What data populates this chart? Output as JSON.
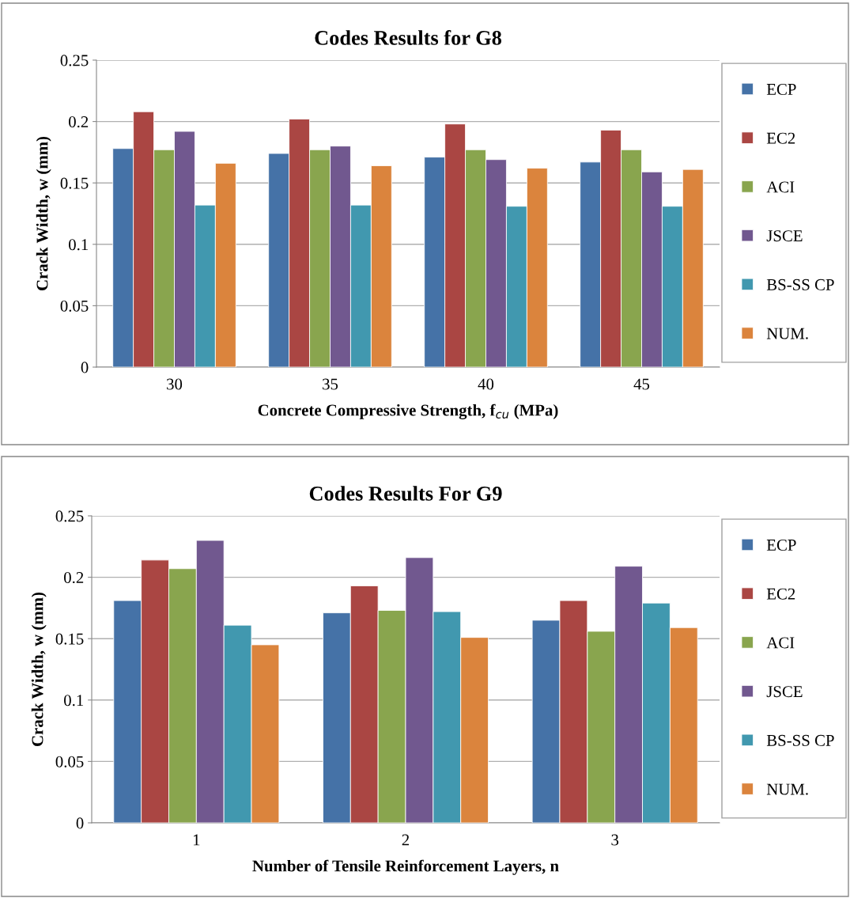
{
  "chart_data": [
    {
      "type": "bar",
      "title": "Codes Results for G8",
      "xlabel": "Concrete Compressive Strength, f$_{cu}$ (MPa)",
      "ylabel": "Crack Width, w (mm)",
      "categories": [
        "30",
        "35",
        "40",
        "45"
      ],
      "series": [
        {
          "name": "ECP",
          "color": "#4572a7",
          "values": [
            0.178,
            0.174,
            0.171,
            0.167
          ]
        },
        {
          "name": "EC2",
          "color": "#aa4643",
          "values": [
            0.208,
            0.202,
            0.198,
            0.193
          ]
        },
        {
          "name": "ACI",
          "color": "#89a54e",
          "values": [
            0.177,
            0.177,
            0.177,
            0.177
          ]
        },
        {
          "name": "JSCE",
          "color": "#71588f",
          "values": [
            0.192,
            0.18,
            0.169,
            0.159
          ]
        },
        {
          "name": "BS-SS CP",
          "color": "#4198af",
          "values": [
            0.132,
            0.132,
            0.131,
            0.131
          ]
        },
        {
          "name": "NUM.",
          "color": "#db843d",
          "values": [
            0.166,
            0.164,
            0.162,
            0.161
          ]
        }
      ],
      "ylim": [
        0,
        0.25
      ],
      "yticks": [
        0,
        0.05,
        0.1,
        0.15,
        0.2,
        0.25
      ],
      "grid": "y",
      "legend": "right"
    },
    {
      "type": "bar",
      "title": "Codes Results For G9",
      "xlabel": "Number of Tensile Reinforcement Layers, n",
      "ylabel": "Crack Width, w (mm)",
      "categories": [
        "1",
        "2",
        "3"
      ],
      "series": [
        {
          "name": "ECP",
          "color": "#4572a7",
          "values": [
            0.181,
            0.171,
            0.165
          ]
        },
        {
          "name": "EC2",
          "color": "#aa4643",
          "values": [
            0.214,
            0.193,
            0.181
          ]
        },
        {
          "name": "ACI",
          "color": "#89a54e",
          "values": [
            0.207,
            0.173,
            0.156
          ]
        },
        {
          "name": "JSCE",
          "color": "#71588f",
          "values": [
            0.23,
            0.216,
            0.209
          ]
        },
        {
          "name": "BS-SS CP",
          "color": "#4198af",
          "values": [
            0.161,
            0.172,
            0.179
          ]
        },
        {
          "name": "NUM.",
          "color": "#db843d",
          "values": [
            0.145,
            0.151,
            0.159
          ]
        }
      ],
      "ylim": [
        0,
        0.25
      ],
      "yticks": [
        0,
        0.05,
        0.1,
        0.15,
        0.2,
        0.25
      ],
      "grid": "y",
      "legend": "right"
    }
  ]
}
